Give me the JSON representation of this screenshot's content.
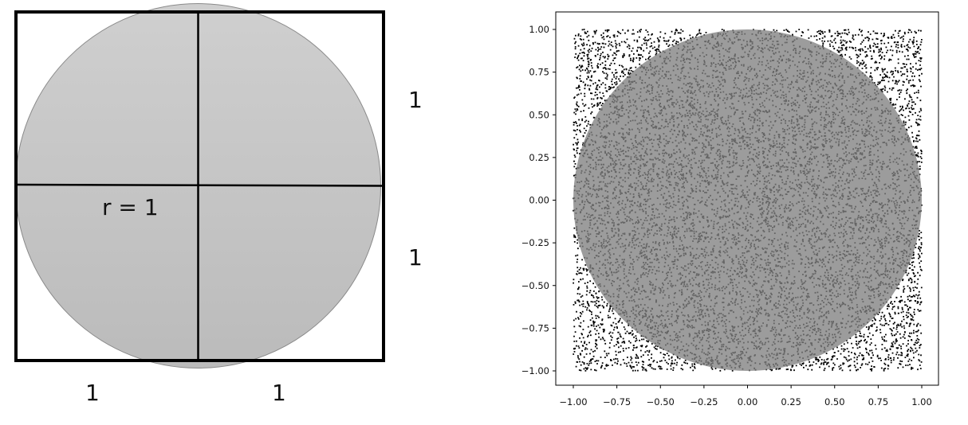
{
  "diagram": {
    "radius_label": "r = 1",
    "right_labels": [
      "1",
      "1"
    ],
    "bottom_labels": [
      "1",
      "1"
    ],
    "colors": {
      "circle_fill": "#cccccc",
      "circle_fill_dark": "#bdbdbd",
      "frame": "#000000"
    }
  },
  "chart_data": {
    "type": "scatter",
    "title": "",
    "xlabel": "",
    "ylabel": "",
    "xlim": [
      -1.0,
      1.0
    ],
    "ylim": [
      -1.0,
      1.0
    ],
    "x_ticks": [
      "−1.00",
      "−0.75",
      "−0.50",
      "−0.25",
      "0.00",
      "0.25",
      "0.50",
      "0.75",
      "1.00"
    ],
    "y_ticks": [
      "1.00",
      "0.75",
      "0.50",
      "0.25",
      "0.00",
      "−0.25",
      "−0.50",
      "−0.75",
      "−1.00"
    ],
    "grid": false,
    "legend": "none",
    "points": {
      "distribution": "uniform random on [-1, 1] x [-1, 1]",
      "count": 10000,
      "color": "#000000"
    },
    "overlay_circle": {
      "center": [
        0,
        0
      ],
      "radius": 1,
      "color": "#808080"
    }
  }
}
